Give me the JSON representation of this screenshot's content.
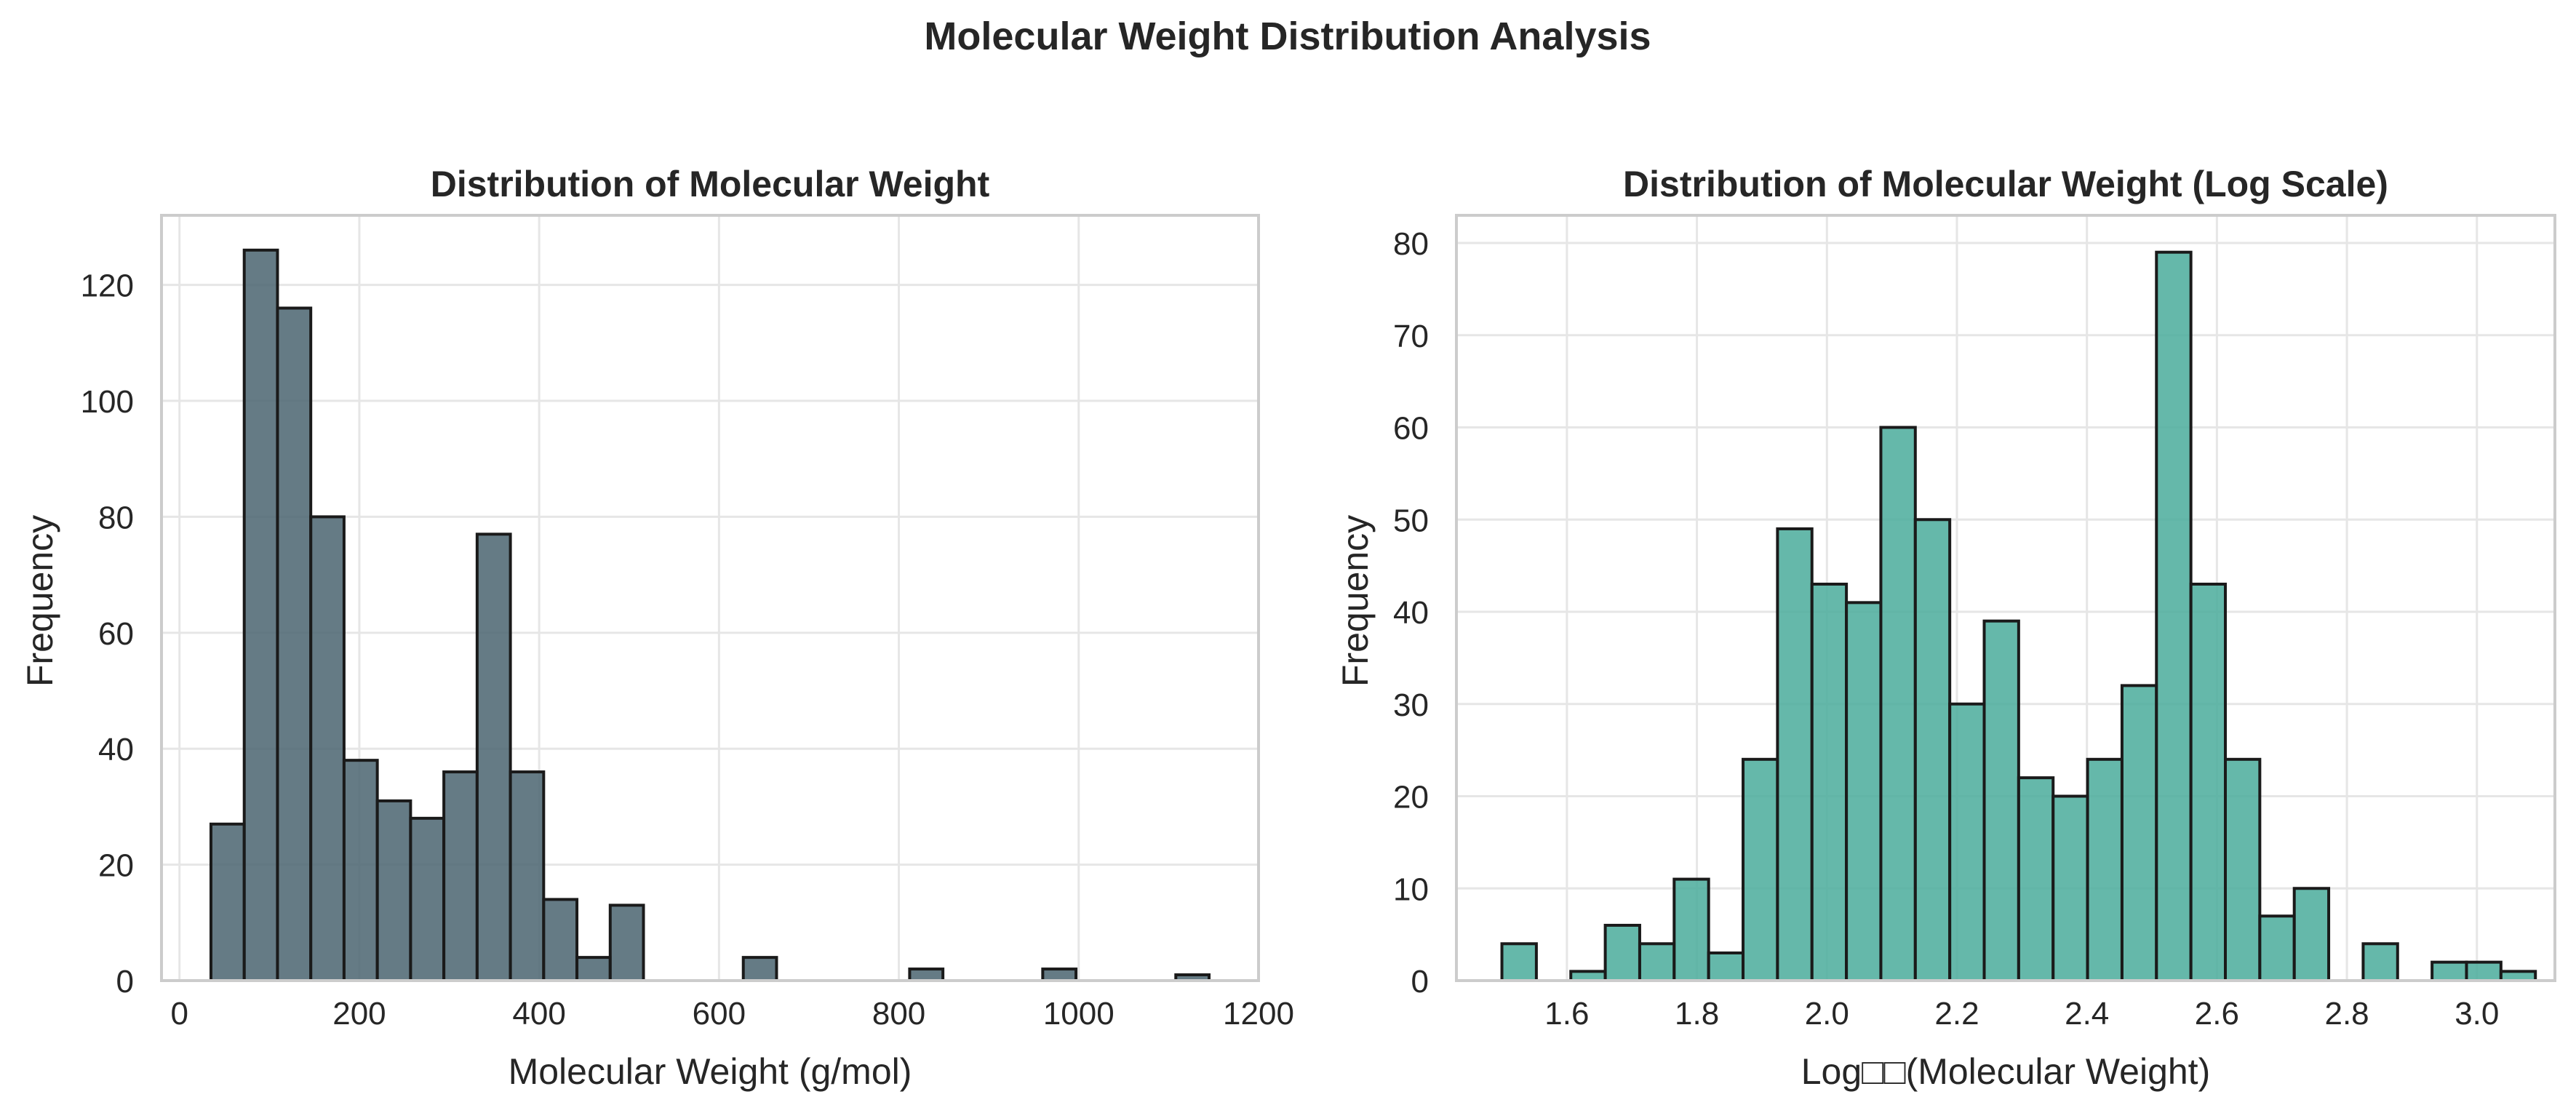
{
  "figure": {
    "title": "Molecular Weight Distribution Analysis"
  },
  "chart_data": [
    {
      "type": "bar",
      "title": "Distribution of Molecular Weight",
      "xlabel": "Molecular Weight (g/mol)",
      "ylabel": "Frequency",
      "xlim": [
        -20,
        1200
      ],
      "ylim": [
        0,
        132
      ],
      "xticks": [
        0,
        200,
        400,
        600,
        800,
        1000,
        1200
      ],
      "yticks": [
        0,
        20,
        40,
        60,
        80,
        100,
        120
      ],
      "grid": true,
      "color": "#4a6470",
      "bin_width": 37,
      "bins": [
        {
          "x0": 35,
          "x1": 72,
          "value": 27
        },
        {
          "x0": 72,
          "x1": 109,
          "value": 126
        },
        {
          "x0": 109,
          "x1": 146,
          "value": 116
        },
        {
          "x0": 146,
          "x1": 183,
          "value": 80
        },
        {
          "x0": 183,
          "x1": 220,
          "value": 38
        },
        {
          "x0": 220,
          "x1": 257,
          "value": 31
        },
        {
          "x0": 257,
          "x1": 294,
          "value": 28
        },
        {
          "x0": 294,
          "x1": 331,
          "value": 36
        },
        {
          "x0": 331,
          "x1": 368,
          "value": 77
        },
        {
          "x0": 368,
          "x1": 405,
          "value": 36
        },
        {
          "x0": 405,
          "x1": 442,
          "value": 14
        },
        {
          "x0": 442,
          "x1": 479,
          "value": 4
        },
        {
          "x0": 479,
          "x1": 516,
          "value": 13
        },
        {
          "x0": 627,
          "x1": 664,
          "value": 4
        },
        {
          "x0": 812,
          "x1": 849,
          "value": 2
        },
        {
          "x0": 960,
          "x1": 997,
          "value": 2
        },
        {
          "x0": 1108,
          "x1": 1145,
          "value": 1
        }
      ]
    },
    {
      "type": "bar",
      "title": "Distribution of Molecular Weight (Log Scale)",
      "xlabel": "Log□□(Molecular Weight)",
      "ylabel": "Frequency",
      "xlim": [
        1.43,
        3.12
      ],
      "ylim": [
        0,
        83
      ],
      "xticks": [
        "1.6",
        "1.8",
        "2.0",
        "2.2",
        "2.4",
        "2.6",
        "2.8",
        "3.0"
      ],
      "yticks": [
        0,
        10,
        20,
        30,
        40,
        50,
        60,
        70,
        80
      ],
      "grid": true,
      "color": "#4aab9b",
      "bins": [
        {
          "x0": 1.5,
          "x1": 1.553,
          "value": 4
        },
        {
          "x0": 1.553,
          "x1": 1.606,
          "value": 0
        },
        {
          "x0": 1.606,
          "x1": 1.659,
          "value": 1
        },
        {
          "x0": 1.659,
          "x1": 1.712,
          "value": 6
        },
        {
          "x0": 1.712,
          "x1": 1.765,
          "value": 4
        },
        {
          "x0": 1.765,
          "x1": 1.818,
          "value": 11
        },
        {
          "x0": 1.818,
          "x1": 1.871,
          "value": 3
        },
        {
          "x0": 1.871,
          "x1": 1.924,
          "value": 24
        },
        {
          "x0": 1.924,
          "x1": 1.977,
          "value": 49
        },
        {
          "x0": 1.977,
          "x1": 2.03,
          "value": 43
        },
        {
          "x0": 2.03,
          "x1": 2.083,
          "value": 41
        },
        {
          "x0": 2.083,
          "x1": 2.136,
          "value": 60
        },
        {
          "x0": 2.136,
          "x1": 2.189,
          "value": 50
        },
        {
          "x0": 2.189,
          "x1": 2.242,
          "value": 30
        },
        {
          "x0": 2.242,
          "x1": 2.295,
          "value": 39
        },
        {
          "x0": 2.295,
          "x1": 2.348,
          "value": 22
        },
        {
          "x0": 2.348,
          "x1": 2.401,
          "value": 20
        },
        {
          "x0": 2.401,
          "x1": 2.454,
          "value": 24
        },
        {
          "x0": 2.454,
          "x1": 2.507,
          "value": 32
        },
        {
          "x0": 2.507,
          "x1": 2.56,
          "value": 79
        },
        {
          "x0": 2.56,
          "x1": 2.613,
          "value": 43
        },
        {
          "x0": 2.613,
          "x1": 2.666,
          "value": 24
        },
        {
          "x0": 2.666,
          "x1": 2.719,
          "value": 7
        },
        {
          "x0": 2.719,
          "x1": 2.772,
          "value": 10
        },
        {
          "x0": 2.772,
          "x1": 2.825,
          "value": 0
        },
        {
          "x0": 2.825,
          "x1": 2.878,
          "value": 4
        },
        {
          "x0": 2.878,
          "x1": 2.931,
          "value": 0
        },
        {
          "x0": 2.931,
          "x1": 2.984,
          "value": 2
        },
        {
          "x0": 2.984,
          "x1": 3.037,
          "value": 2
        },
        {
          "x0": 3.037,
          "x1": 3.09,
          "value": 1
        }
      ]
    }
  ]
}
